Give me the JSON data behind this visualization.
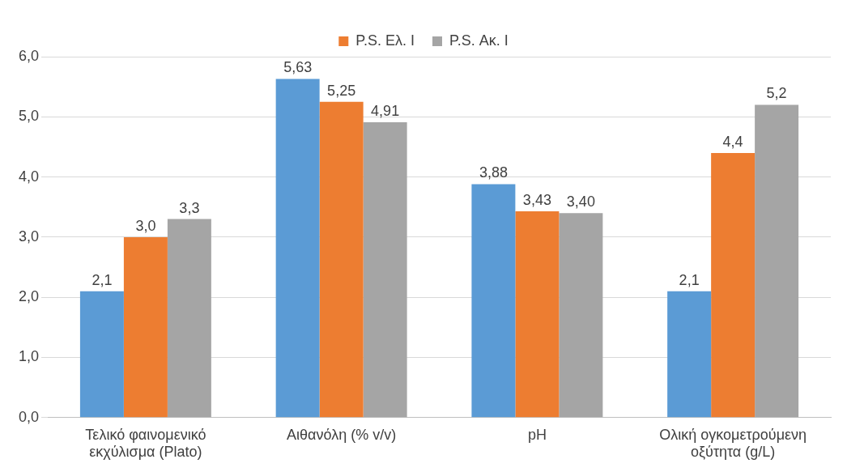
{
  "chart_data": {
    "type": "bar",
    "categories": [
      "Τελικό φαινομενικό εκχύλισμα (Plato)",
      "Αιθανόλη (% v/v)",
      "pH",
      "Ολική ογκομετρούμενη οξύτητα (g/L)"
    ],
    "series": [
      {
        "color": "#5b9bd5",
        "values": [
          2.1,
          5.63,
          3.88,
          2.1
        ],
        "value_labels": [
          "2,1",
          "5,63",
          "3,88",
          "2,1"
        ]
      },
      {
        "name": "P.S. Ελ. I",
        "color": "#ed7d31",
        "values": [
          3.0,
          5.25,
          3.43,
          4.4
        ],
        "value_labels": [
          "3,0",
          "5,25",
          "3,43",
          "4,4"
        ]
      },
      {
        "name": "P.S. Ακ. I",
        "color": "#a5a5a5",
        "values": [
          3.3,
          4.91,
          3.4,
          5.2
        ],
        "value_labels": [
          "3,3",
          "4,91",
          "3,40",
          "5,2"
        ]
      }
    ],
    "ylim": [
      0,
      6
    ],
    "yticks": [
      {
        "value": 0,
        "label": "0,0"
      },
      {
        "value": 1,
        "label": "1,0"
      },
      {
        "value": 2,
        "label": "2,0"
      },
      {
        "value": 3,
        "label": "3,0"
      },
      {
        "value": 4,
        "label": "4,0"
      },
      {
        "value": 5,
        "label": "5,0"
      },
      {
        "value": 6,
        "label": "6,0"
      }
    ],
    "grid": "y",
    "legend": "top"
  }
}
